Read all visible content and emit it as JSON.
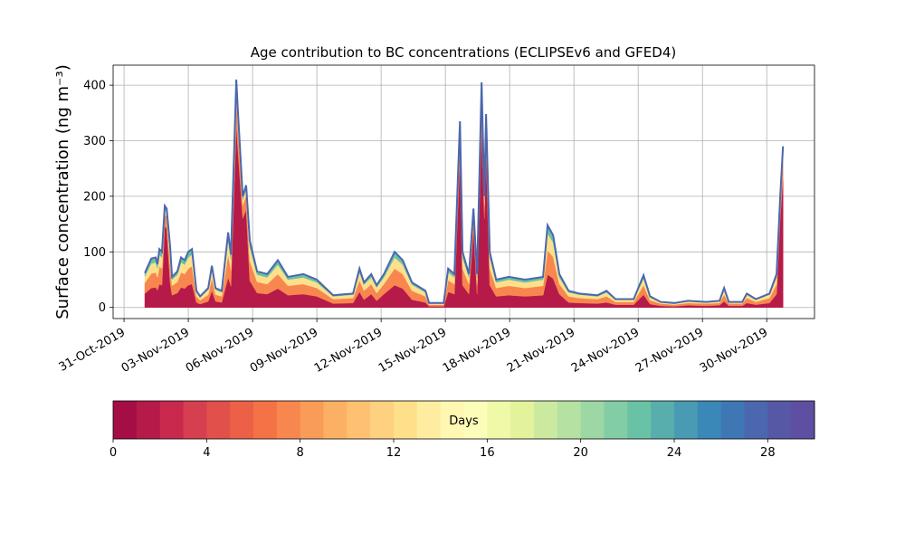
{
  "chart_data": {
    "type": "stacked_area",
    "title": "Age contribution to BC concentrations (ECLIPSEv6 and GFED4)",
    "y_label": "Surface concentration (ng m⁻³)",
    "x": [
      0.97,
      1.27,
      1.48,
      1.56,
      1.65,
      1.77,
      1.9,
      1.99,
      2.15,
      2.24,
      2.49,
      2.66,
      2.83,
      3.0,
      3.17,
      3.38,
      3.55,
      3.93,
      4.1,
      4.27,
      4.56,
      4.86,
      4.99,
      5.24,
      5.32,
      5.54,
      5.7,
      5.87,
      6.21,
      6.68,
      7.18,
      7.65,
      8.37,
      9.0,
      9.76,
      10.69,
      10.99,
      11.2,
      11.54,
      11.79,
      12.13,
      12.63,
      13.01,
      13.44,
      14.07,
      14.24,
      14.92,
      15.13,
      15.42,
      15.68,
      15.8,
      16.1,
      16.31,
      16.48,
      16.69,
      16.82,
      16.9,
      17.07,
      17.37,
      17.96,
      18.72,
      19.56,
      19.77,
      20.03,
      20.32,
      20.75,
      21.25,
      22.1,
      22.52,
      22.94,
      23.79,
      24.25,
      24.55,
      25.05,
      25.69,
      26.32,
      27.17,
      27.8,
      28.01,
      28.23,
      28.86,
      29.07,
      29.49,
      30.13,
      30.46,
      30.63,
      30.76
    ],
    "series": [
      {
        "color": "#b61a49",
        "values": [
          25,
          35,
          36,
          31,
          42,
          40,
          146,
          142,
          44,
          22,
          26,
          36,
          34,
          40,
          42,
          9,
          6,
          11,
          30,
          11,
          9,
          54,
          38,
          328,
          280,
          160,
          176,
          48,
          26,
          24,
          34,
          22,
          24,
          20,
          7,
          8,
          28,
          14,
          24,
          12,
          24,
          40,
          34,
          14,
          9,
          2,
          2,
          28,
          24,
          268,
          40,
          24,
          142,
          24,
          324,
          160,
          278,
          40,
          20,
          22,
          20,
          22,
          59,
          52,
          24,
          9,
          8,
          7,
          9,
          5,
          5,
          23,
          6,
          3,
          2,
          4,
          3,
          4,
          11,
          3,
          3,
          8,
          5,
          8,
          24,
          160,
          232
        ]
      },
      {
        "color": "#f7874f",
        "values": [
          19,
          26,
          27,
          23,
          32,
          30,
          22,
          21,
          33,
          17,
          20,
          27,
          26,
          30,
          32,
          11,
          7,
          12,
          23,
          12,
          11,
          41,
          29,
          49,
          42,
          24,
          26,
          36,
          20,
          18,
          26,
          17,
          18,
          15,
          8,
          9,
          21,
          16,
          18,
          14,
          18,
          30,
          26,
          16,
          11,
          3,
          3,
          21,
          18,
          40,
          30,
          18,
          21,
          18,
          49,
          24,
          42,
          30,
          15,
          17,
          15,
          17,
          44,
          39,
          18,
          11,
          9,
          8,
          11,
          5,
          5,
          17,
          7,
          4,
          3,
          4,
          4,
          4,
          12,
          4,
          4,
          9,
          5,
          9,
          18,
          24,
          35
        ]
      },
      {
        "color": "#fee08b",
        "values": [
          12,
          18,
          18,
          16,
          21,
          20,
          9,
          9,
          22,
          11,
          13,
          18,
          17,
          20,
          21,
          7,
          5,
          9,
          15,
          9,
          7,
          27,
          19,
          21,
          18,
          10,
          11,
          24,
          13,
          12,
          17,
          11,
          12,
          10,
          5,
          6,
          14,
          11,
          12,
          10,
          12,
          20,
          17,
          11,
          7,
          2,
          2,
          14,
          12,
          17,
          20,
          12,
          9,
          12,
          20,
          10,
          17,
          20,
          10,
          11,
          10,
          11,
          30,
          26,
          12,
          7,
          6,
          5,
          7,
          4,
          4,
          12,
          5,
          2,
          2,
          3,
          2,
          3,
          9,
          2,
          2,
          6,
          4,
          6,
          12,
          10,
          14
        ]
      },
      {
        "color": "#69c2a5",
        "values": [
          6,
          9,
          9,
          8,
          10,
          10,
          6,
          6,
          11,
          5,
          6,
          9,
          8,
          10,
          10,
          3,
          2,
          3,
          7,
          3,
          3,
          13,
          9,
          12,
          10,
          6,
          7,
          12,
          6,
          6,
          8,
          5,
          6,
          5,
          2,
          2,
          7,
          4,
          6,
          4,
          6,
          10,
          8,
          4,
          3,
          1,
          1,
          7,
          6,
          10,
          10,
          6,
          6,
          6,
          12,
          6,
          11,
          10,
          5,
          5,
          5,
          5,
          15,
          13,
          6,
          3,
          2,
          2,
          3,
          1,
          1,
          6,
          2,
          1,
          1,
          1,
          1,
          1,
          3,
          1,
          1,
          2,
          1,
          2,
          6,
          6,
          9
        ]
      }
    ],
    "outline_color": "#4b67ad",
    "xlim": [
      -0.51,
      32.23
    ],
    "xticks": [
      {
        "value": 0,
        "label": "31-Oct-2019"
      },
      {
        "value": 3,
        "label": "03-Nov-2019"
      },
      {
        "value": 6,
        "label": "06-Nov-2019"
      },
      {
        "value": 9,
        "label": "09-Nov-2019"
      },
      {
        "value": 12,
        "label": "12-Nov-2019"
      },
      {
        "value": 15,
        "label": "15-Nov-2019"
      },
      {
        "value": 18,
        "label": "18-Nov-2019"
      },
      {
        "value": 21,
        "label": "21-Nov-2019"
      },
      {
        "value": 24,
        "label": "24-Nov-2019"
      },
      {
        "value": 27,
        "label": "27-Nov-2019"
      },
      {
        "value": 30,
        "label": "30-Nov-2019"
      }
    ],
    "ylim": [
      -20,
      436
    ],
    "yticks": [
      0,
      100,
      200,
      300,
      400
    ],
    "grid": true,
    "colorbar": {
      "label": "Days",
      "lim": [
        0,
        30
      ],
      "ticks": [
        0,
        4,
        8,
        12,
        16,
        20,
        24,
        28
      ],
      "colors": [
        "#a50d45",
        "#b61a49",
        "#c8294c",
        "#d63f4f",
        "#e1504a",
        "#eb6046",
        "#f47245",
        "#f7874f",
        "#f99c58",
        "#fcb063",
        "#fdc171",
        "#fdd17f",
        "#fee08b",
        "#feeda0",
        "#fff7b2",
        "#fbfdb8",
        "#f0f9a8",
        "#e2f39b",
        "#cbeaa0",
        "#b5e1a2",
        "#9cd7a4",
        "#82cda5",
        "#69c2a5",
        "#58aeac",
        "#489bb2",
        "#3a88b8",
        "#3f77b5",
        "#4b67ad",
        "#5658a6",
        "#5e4fa2"
      ]
    }
  }
}
